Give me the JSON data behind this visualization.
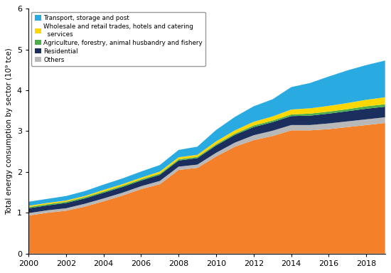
{
  "years": [
    2000,
    2001,
    2002,
    2003,
    2004,
    2005,
    2006,
    2007,
    2008,
    2009,
    2010,
    2011,
    2012,
    2013,
    2014,
    2015,
    2016,
    2017,
    2018,
    2019
  ],
  "industry": [
    0.93,
    1.0,
    1.05,
    1.15,
    1.28,
    1.42,
    1.58,
    1.7,
    2.05,
    2.1,
    2.38,
    2.62,
    2.78,
    2.88,
    3.02,
    3.02,
    3.05,
    3.1,
    3.15,
    3.2
  ],
  "others": [
    0.06,
    0.06,
    0.06,
    0.07,
    0.07,
    0.07,
    0.07,
    0.08,
    0.08,
    0.08,
    0.09,
    0.1,
    0.12,
    0.13,
    0.13,
    0.13,
    0.14,
    0.14,
    0.14,
    0.14
  ],
  "residential": [
    0.12,
    0.12,
    0.13,
    0.13,
    0.14,
    0.14,
    0.14,
    0.15,
    0.15,
    0.16,
    0.18,
    0.19,
    0.2,
    0.21,
    0.22,
    0.23,
    0.24,
    0.25,
    0.26,
    0.26
  ],
  "agriculture": [
    0.03,
    0.03,
    0.03,
    0.03,
    0.03,
    0.03,
    0.03,
    0.03,
    0.03,
    0.03,
    0.03,
    0.03,
    0.04,
    0.04,
    0.04,
    0.05,
    0.05,
    0.05,
    0.06,
    0.06
  ],
  "wholesale": [
    0.03,
    0.03,
    0.03,
    0.03,
    0.04,
    0.04,
    0.04,
    0.05,
    0.05,
    0.05,
    0.07,
    0.08,
    0.09,
    0.1,
    0.12,
    0.13,
    0.14,
    0.15,
    0.16,
    0.17
  ],
  "transport": [
    0.1,
    0.1,
    0.11,
    0.12,
    0.13,
    0.14,
    0.15,
    0.16,
    0.18,
    0.2,
    0.28,
    0.33,
    0.38,
    0.42,
    0.55,
    0.62,
    0.72,
    0.8,
    0.85,
    0.9
  ],
  "colors": {
    "industry": "#F4812A",
    "others": "#B8B8B8",
    "residential": "#1B2F5E",
    "agriculture": "#4DAF4A",
    "wholesale": "#FFD700",
    "transport": "#29ABE2"
  },
  "legend_labels": {
    "transport": "Transport, storage and post",
    "wholesale": "Wholesale and retail trades, hotels and catering\n  services",
    "agriculture": "Agriculture, forestry, animal husbandry and fishery",
    "residential": "Residential",
    "others": "Others"
  },
  "ylabel": "Total energy consumption by sector (10⁹ tce)",
  "ylim": [
    0,
    6
  ],
  "yticks": [
    0,
    1,
    2,
    3,
    4,
    5,
    6
  ],
  "xlim": [
    2000,
    2019
  ],
  "xticks": [
    2000,
    2002,
    2004,
    2006,
    2008,
    2010,
    2012,
    2014,
    2016,
    2018
  ]
}
